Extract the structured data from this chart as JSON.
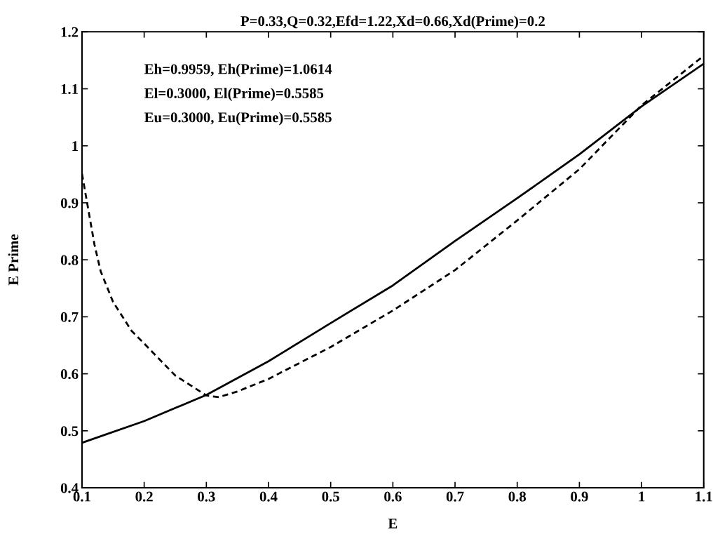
{
  "chart_data": {
    "type": "line",
    "title": "P=0.33,Q=0.32,Efd=1.22,Xd=0.66,Xd(Prime)=0.2",
    "xlabel": "E",
    "ylabel": "E Prime",
    "annotations": [
      "Eh=0.9959, Eh(Prime)=1.0614",
      "El=0.3000, El(Prime)=0.5585",
      "Eu=0.3000, Eu(Prime)=0.5585"
    ],
    "series": [
      {
        "color": "#000000",
        "line_style": "solid",
        "x": [
          0.1,
          0.2,
          0.3,
          0.4,
          0.5,
          0.6,
          0.7,
          0.8,
          0.9,
          1.0,
          1.1
        ],
        "values": [
          0.479,
          0.517,
          0.563,
          0.622,
          0.689,
          0.755,
          0.833,
          0.908,
          0.985,
          1.069,
          1.144
        ]
      },
      {
        "color": "#000000",
        "line_style": "dashed",
        "x": [
          0.1,
          0.12,
          0.13,
          0.15,
          0.18,
          0.2,
          0.25,
          0.3,
          0.32,
          0.35,
          0.4,
          0.5,
          0.6,
          0.7,
          0.8,
          0.9,
          1.0,
          1.1
        ],
        "values": [
          0.951,
          0.827,
          0.78,
          0.726,
          0.675,
          0.653,
          0.597,
          0.562,
          0.559,
          0.569,
          0.591,
          0.647,
          0.711,
          0.782,
          0.869,
          0.959,
          1.071,
          1.158
        ]
      }
    ],
    "xlim": [
      0.1,
      1.1
    ],
    "xticks": [
      0.1,
      0.2,
      0.3,
      0.4,
      0.5,
      0.6,
      0.7,
      0.8,
      0.9,
      1,
      1.1
    ],
    "ylim": [
      0.4,
      1.2
    ],
    "yticks": [
      0.4,
      0.5,
      0.6,
      0.7,
      0.8,
      0.9,
      1,
      1.1,
      1.2
    ],
    "grid": false,
    "legend": false,
    "marker": "none"
  }
}
